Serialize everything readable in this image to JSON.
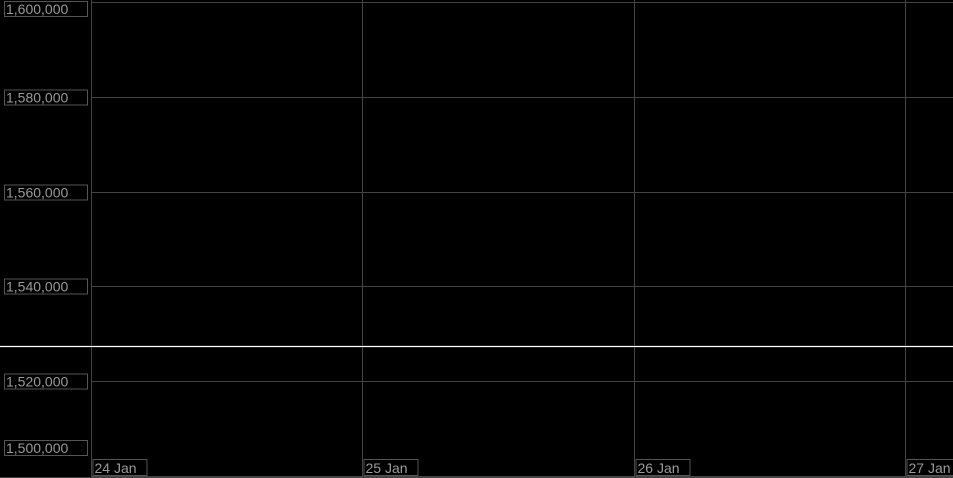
{
  "chart_data": {
    "type": "line",
    "title": "",
    "xlabel": "",
    "ylabel": "",
    "ylim": [
      1500000,
      1600000
    ],
    "xlim": [
      "23 Jan 15:57",
      "27 Jan 04:15"
    ],
    "yticks": [
      "1,500,000",
      "1,520,000",
      "1,540,000",
      "1,560,000",
      "1,580,000",
      "1,600,000"
    ],
    "ytick_values": [
      1500000,
      1520000,
      1540000,
      1560000,
      1580000,
      1600000
    ],
    "xticks": [
      "24 Jan",
      "25 Jan",
      "26 Jan",
      "27 Jan"
    ],
    "grid": true,
    "series": [
      {
        "x": [
          "23 Jan 15:57",
          "27 Jan 04:15"
        ],
        "y": [
          1527400,
          1527400
        ],
        "color": "#ffffff"
      }
    ],
    "colors": {
      "background": "#000000",
      "grid": "#444444",
      "label": "#9a9a9a",
      "line": "#ffffff"
    }
  }
}
